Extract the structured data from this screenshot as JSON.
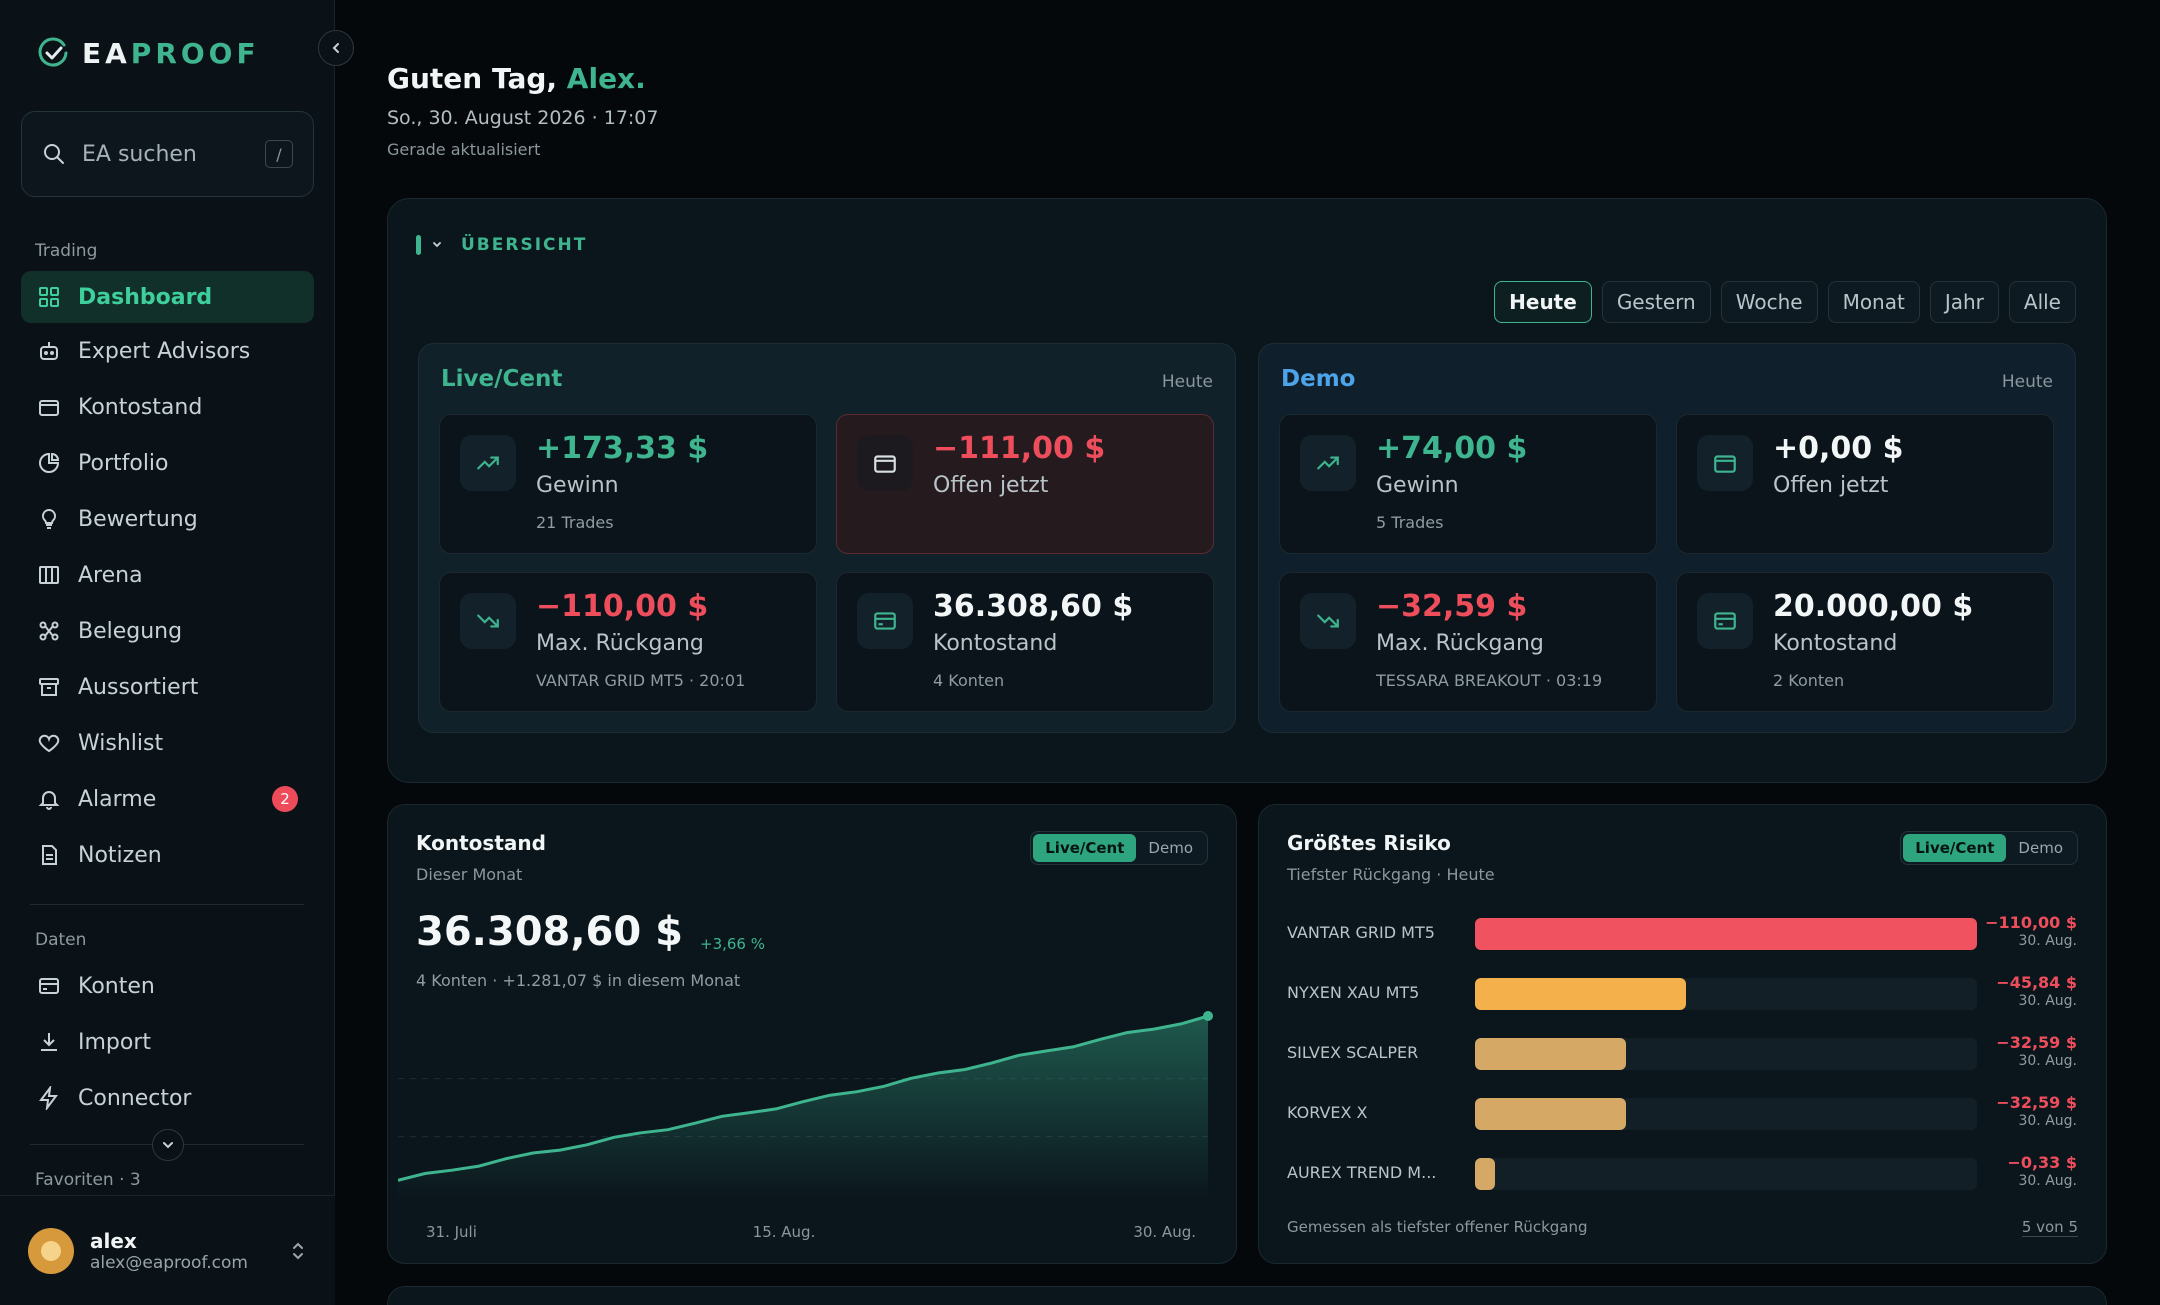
{
  "brand": {
    "prefix": "EA",
    "suffix": "PROOF"
  },
  "search": {
    "placeholder": "EA suchen",
    "shortcut": "/"
  },
  "sidebar": {
    "trading_label": "Trading",
    "trading_items": [
      {
        "label": "Dashboard",
        "icon": "dashboard-icon",
        "active": true
      },
      {
        "label": "Expert Advisors",
        "icon": "robot-icon"
      },
      {
        "label": "Kontostand",
        "icon": "wallet-icon"
      },
      {
        "label": "Portfolio",
        "icon": "pie-icon"
      },
      {
        "label": "Bewertung",
        "icon": "bulb-icon"
      },
      {
        "label": "Arena",
        "icon": "columns-icon"
      },
      {
        "label": "Belegung",
        "icon": "nodes-icon"
      },
      {
        "label": "Aussortiert",
        "icon": "archive-icon"
      },
      {
        "label": "Wishlist",
        "icon": "heart-icon"
      },
      {
        "label": "Alarme",
        "icon": "bell-icon",
        "badge": "2"
      },
      {
        "label": "Notizen",
        "icon": "note-icon"
      }
    ],
    "data_label": "Daten",
    "data_items": [
      {
        "label": "Konten",
        "icon": "card-icon"
      },
      {
        "label": "Import",
        "icon": "download-icon"
      },
      {
        "label": "Connector",
        "icon": "bolt-icon"
      }
    ],
    "favorites_label": "Favoriten · 3"
  },
  "user": {
    "name": "alex",
    "email": "alex@eaproof.com"
  },
  "header": {
    "greeting": "Guten Tag, ",
    "name": "Alex.",
    "date": "So., 30. August 2026 · 17:07",
    "updated": "Gerade aktualisiert"
  },
  "overview": {
    "title": "ÜBERSICHT",
    "filters": [
      "Heute",
      "Gestern",
      "Woche",
      "Monat",
      "Jahr",
      "Alle"
    ],
    "active_filter": "Heute",
    "live": {
      "title": "Live/Cent",
      "when": "Heute",
      "profit": {
        "value": "+173,33 $",
        "label": "Gewinn",
        "sub": "21 Trades"
      },
      "open": {
        "value": "−111,00 $",
        "label": "Offen jetzt"
      },
      "drawdown": {
        "value": "−110,00 $",
        "label": "Max. Rückgang",
        "sub": "VANTAR GRID MT5 · 20:01"
      },
      "balance": {
        "value": "36.308,60 $",
        "label": "Kontostand",
        "sub": "4 Konten"
      }
    },
    "demo": {
      "title": "Demo",
      "when": "Heute",
      "profit": {
        "value": "+74,00 $",
        "label": "Gewinn",
        "sub": "5 Trades"
      },
      "open": {
        "value": "+0,00 $",
        "label": "Offen jetzt"
      },
      "drawdown": {
        "value": "−32,59 $",
        "label": "Max. Rückgang",
        "sub": "TESSARA BREAKOUT · 03:19"
      },
      "balance": {
        "value": "20.000,00 $",
        "label": "Kontostand",
        "sub": "2 Konten"
      }
    }
  },
  "balance_card": {
    "title": "Kontostand",
    "subtitle": "Dieser Monat",
    "seg_on": "Live/Cent",
    "seg_off": "Demo",
    "value": "36.308,60 $",
    "change": "+3,66 %",
    "note": "4 Konten · +1.281,07 $ in diesem Monat",
    "x_ticks": [
      "31. Juli",
      "15. Aug.",
      "30. Aug."
    ]
  },
  "chart_data": {
    "type": "area",
    "x": [
      "31. Juli",
      "15. Aug.",
      "30. Aug."
    ],
    "series": [
      {
        "values": [
          35027.53,
          35640.0,
          36308.6
        ]
      }
    ],
    "xlabel": "",
    "ylabel": "",
    "grid": true
  },
  "risk_card": {
    "title": "Größtes Risiko",
    "subtitle": "Tiefster Rückgang · Heute",
    "seg_on": "Live/Cent",
    "seg_off": "Demo",
    "rows": [
      {
        "name": "VANTAR GRID MT5",
        "value": "−110,00 $",
        "date": "30. Aug.",
        "fraction": 1.0,
        "color": "#f0525f"
      },
      {
        "name": "NYXEN XAU MT5",
        "value": "−45,84 $",
        "date": "30. Aug.",
        "fraction": 0.42,
        "color": "#f4b04a"
      },
      {
        "name": "SILVEX SCALPER",
        "value": "−32,59 $",
        "date": "30. Aug.",
        "fraction": 0.3,
        "color": "#d6a866"
      },
      {
        "name": "KORVEX X",
        "value": "−32,59 $",
        "date": "30. Aug.",
        "fraction": 0.3,
        "color": "#d6a866"
      },
      {
        "name": "AUREX TREND M...",
        "value": "−0,33 $",
        "date": "30. Aug.",
        "fraction": 0.04,
        "color": "#d6a866"
      }
    ],
    "footer": "Gemessen als tiefster offener Rückgang",
    "count": "5 von 5"
  }
}
